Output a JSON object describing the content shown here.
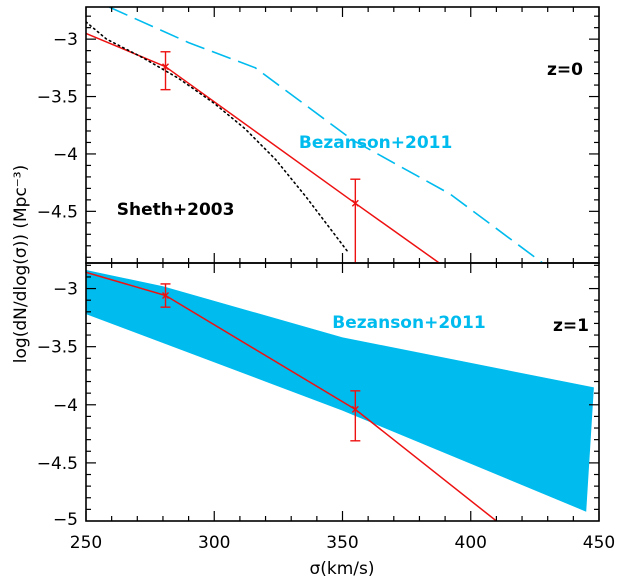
{
  "chart_data": {
    "type": "line",
    "xlabel": "σ(km/s)",
    "ylabel": "log(dN/dlog(σ))  (Mpc⁻³)",
    "xlim": [
      250,
      450
    ],
    "x_ticks": [
      250,
      300,
      350,
      400,
      450
    ],
    "colors": {
      "measurement": "#ee1111",
      "bezanson": "#00bbee",
      "sheth": "#000000"
    },
    "panels": [
      {
        "label": "z=0",
        "ylim": [
          -4.95,
          -2.72
        ],
        "y_ticks": [
          -3,
          -3.5,
          -4,
          -4.5
        ],
        "annotations": [
          {
            "text": "Bezanson+2011",
            "color": "#00bbee",
            "at": [
              333,
              -3.95
            ]
          },
          {
            "text": "Sheth+2003",
            "color": "#000000",
            "at": [
              262,
              -4.53
            ]
          }
        ],
        "series": [
          {
            "style": "solid",
            "color": "#ee1111",
            "x": [
              250,
              281,
              355,
              389
            ],
            "y": [
              -2.95,
              -3.24,
              -4.43,
              -4.97
            ]
          },
          {
            "style": "points",
            "color": "#ee1111",
            "x": [
              281,
              355
            ],
            "y": [
              -3.24,
              -4.43
            ],
            "err_low": [
              -3.44,
              -4.97
            ],
            "err_high": [
              -3.11,
              -4.22
            ]
          },
          {
            "style": "dashed",
            "color": "#00bbee",
            "x": [
              259,
              290,
              316,
              354,
              392,
              428
            ],
            "y": [
              -2.72,
              -3.03,
              -3.25,
              -3.88,
              -4.35,
              -4.95
            ]
          },
          {
            "style": "dotted",
            "color": "#000000",
            "x": [
              250,
              258,
              272,
              286,
              300,
              312,
              324,
              336,
              352
            ],
            "y": [
              -2.85,
              -3.0,
              -3.16,
              -3.34,
              -3.56,
              -3.78,
              -4.05,
              -4.38,
              -4.85
            ]
          }
        ]
      },
      {
        "label": "z=1",
        "ylim": [
          -5.0,
          -2.78
        ],
        "y_ticks": [
          -3,
          -3.5,
          -4,
          -4.5,
          -5
        ],
        "annotations": [
          {
            "text": "Bezanson+2011",
            "color": "#00bbee",
            "at": [
              346,
              -3.34
            ]
          }
        ],
        "band": {
          "color": "#00bbee",
          "x_upper": [
            250,
            280,
            350,
            448
          ],
          "y_upper": [
            -2.84,
            -2.98,
            -3.42,
            -3.85
          ],
          "x_lower": [
            250,
            350,
            445
          ],
          "y_lower": [
            -3.22,
            -4.05,
            -4.92
          ]
        },
        "series": [
          {
            "style": "solid",
            "color": "#ee1111",
            "x": [
              250,
              281,
              355,
              410
            ],
            "y": [
              -2.86,
              -3.06,
              -4.04,
              -5.0
            ]
          },
          {
            "style": "points",
            "color": "#ee1111",
            "x": [
              281,
              355
            ],
            "y": [
              -3.06,
              -4.04
            ],
            "err_low": [
              -3.16,
              -4.31
            ],
            "err_high": [
              -2.96,
              -3.88
            ]
          }
        ]
      }
    ]
  }
}
